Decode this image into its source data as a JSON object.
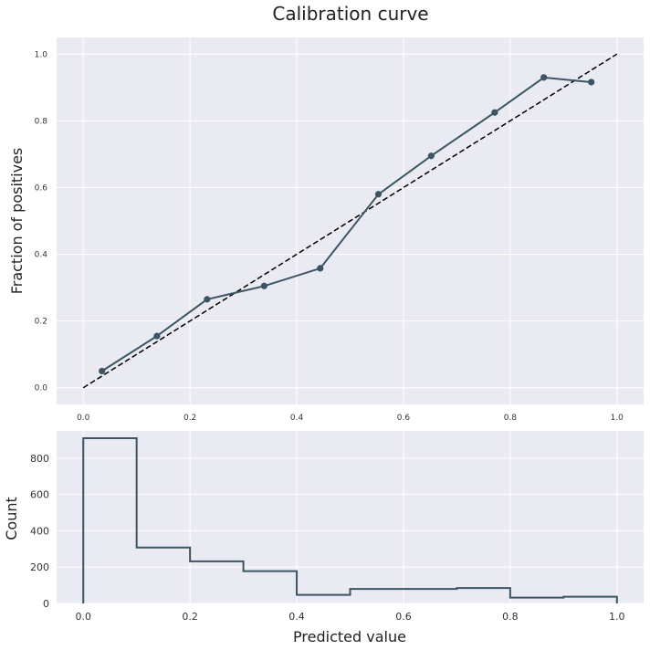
{
  "title": "Calibration curve",
  "chart_data": [
    {
      "type": "line",
      "ylabel": "Fraction of positives",
      "xlim": [
        -0.05,
        1.05
      ],
      "ylim": [
        -0.05,
        1.05
      ],
      "grid": true,
      "xticks": [
        "0.0",
        "0.2",
        "0.4",
        "0.6",
        "0.8",
        "1.0"
      ],
      "yticks": [
        "0.0",
        "0.2",
        "0.4",
        "0.6",
        "0.8",
        "1.0"
      ],
      "reference_line": {
        "x": [
          0,
          1
        ],
        "y": [
          0,
          1
        ],
        "style": "dashed",
        "color": "#000000"
      },
      "series": [
        {
          "color": "#3b5563",
          "x": [
            0.035,
            0.138,
            0.232,
            0.339,
            0.444,
            0.553,
            0.652,
            0.771,
            0.863,
            0.952
          ],
          "y": [
            0.05,
            0.155,
            0.265,
            0.305,
            0.358,
            0.58,
            0.695,
            0.825,
            0.93,
            0.916
          ]
        }
      ]
    },
    {
      "type": "histogram",
      "xlabel": "Predicted value",
      "ylabel": "Count",
      "xlim": [
        -0.05,
        1.05
      ],
      "ylim": [
        0,
        950
      ],
      "grid": true,
      "xticks": [
        "0.0",
        "0.2",
        "0.4",
        "0.6",
        "0.8",
        "1.0"
      ],
      "yticks": [
        "0",
        "200",
        "400",
        "600",
        "800"
      ],
      "color": "#3b5563",
      "bin_edges": [
        0.0,
        0.1,
        0.2,
        0.3,
        0.4,
        0.5,
        0.6,
        0.7,
        0.8,
        0.9,
        1.0
      ],
      "counts": [
        910,
        308,
        232,
        178,
        47,
        80,
        80,
        85,
        32,
        37
      ]
    }
  ]
}
